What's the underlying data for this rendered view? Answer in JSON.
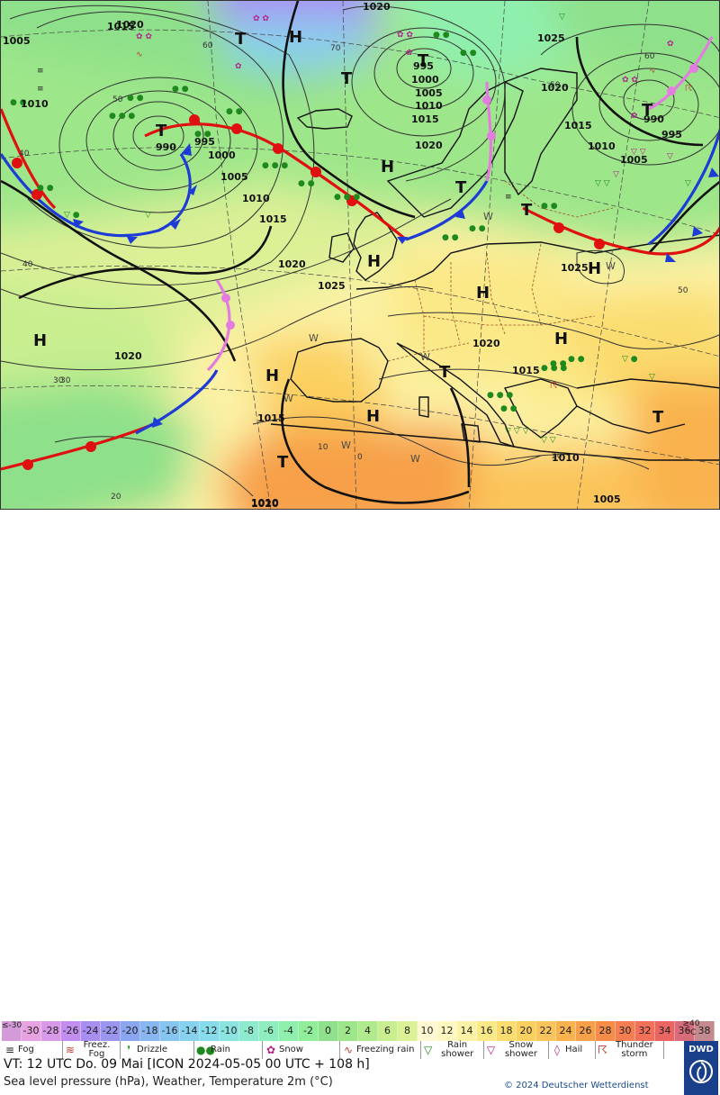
{
  "map": {
    "isobar_labels": [
      {
        "text": "1005"
      },
      {
        "text": "1015"
      },
      {
        "text": "1010"
      },
      {
        "text": "990"
      },
      {
        "text": "995"
      },
      {
        "text": "1000"
      },
      {
        "text": "1005"
      },
      {
        "text": "1010"
      },
      {
        "text": "1015"
      },
      {
        "text": "1020"
      },
      {
        "text": "1025"
      },
      {
        "text": "1020"
      },
      {
        "text": "1015"
      },
      {
        "text": "1020"
      },
      {
        "text": "995"
      },
      {
        "text": "1000"
      },
      {
        "text": "1005"
      },
      {
        "text": "1010"
      },
      {
        "text": "1015"
      },
      {
        "text": "1020"
      },
      {
        "text": "1025"
      },
      {
        "text": "1020"
      },
      {
        "text": "1015"
      },
      {
        "text": "1010"
      },
      {
        "text": "1005"
      },
      {
        "text": "990"
      },
      {
        "text": "995"
      },
      {
        "text": "1025"
      },
      {
        "text": "1020"
      },
      {
        "text": "1015"
      },
      {
        "text": "1010"
      },
      {
        "text": "1010"
      },
      {
        "text": "1005"
      },
      {
        "text": "1020"
      },
      {
        "text": "1020"
      }
    ],
    "pressure_centres": [
      {
        "text": "T"
      },
      {
        "text": "H"
      },
      {
        "text": "T"
      },
      {
        "text": "T"
      },
      {
        "text": "H"
      },
      {
        "text": "T"
      },
      {
        "text": "T"
      },
      {
        "text": "T"
      },
      {
        "text": "H"
      },
      {
        "text": "H"
      },
      {
        "text": "T"
      },
      {
        "text": "H"
      },
      {
        "text": "H"
      },
      {
        "text": "H"
      },
      {
        "text": "H"
      },
      {
        "text": "T"
      },
      {
        "text": "T"
      },
      {
        "text": "T"
      },
      {
        "text": "H"
      }
    ],
    "latlon_labels": [
      "60",
      "50",
      "70",
      "40",
      "40",
      "30",
      "30",
      "20",
      "10",
      "0",
      "20",
      "60",
      "50",
      "50"
    ],
    "weather_wind_marks": [
      "W",
      "W",
      "W",
      "W",
      "W",
      "W",
      "W"
    ]
  },
  "legend": {
    "temperature_scale": [
      {
        "label": "≤-30",
        "color": "#d59ad9"
      },
      {
        "label": "-30",
        "color": "#e7a2e0"
      },
      {
        "label": "-28",
        "color": "#d899e8"
      },
      {
        "label": "-26",
        "color": "#c28ff0"
      },
      {
        "label": "-24",
        "color": "#a98ef2"
      },
      {
        "label": "-22",
        "color": "#9a96ef"
      },
      {
        "label": "-20",
        "color": "#8aa6f0"
      },
      {
        "label": "-18",
        "color": "#88b6f0"
      },
      {
        "label": "-16",
        "color": "#86c5f0"
      },
      {
        "label": "-14",
        "color": "#86d2ee"
      },
      {
        "label": "-12",
        "color": "#86dcea"
      },
      {
        "label": "-10",
        "color": "#8ae4e0"
      },
      {
        "label": "-8",
        "color": "#8eeacf"
      },
      {
        "label": "-6",
        "color": "#8feec0"
      },
      {
        "label": "-4",
        "color": "#8ff0ae"
      },
      {
        "label": "-2",
        "color": "#90ee9a"
      },
      {
        "label": "0",
        "color": "#8ee08a"
      },
      {
        "label": "2",
        "color": "#9ee68a"
      },
      {
        "label": "4",
        "color": "#b0ea8c"
      },
      {
        "label": "6",
        "color": "#c8ee90"
      },
      {
        "label": "8",
        "color": "#dcf096"
      },
      {
        "label": "10",
        "color": "#fff8d2"
      },
      {
        "label": "12",
        "color": "#fff6c0"
      },
      {
        "label": "14",
        "color": "#fcf2a6"
      },
      {
        "label": "16",
        "color": "#fbe886"
      },
      {
        "label": "18",
        "color": "#fbdc6e"
      },
      {
        "label": "20",
        "color": "#fbd05e"
      },
      {
        "label": "22",
        "color": "#fbc45a"
      },
      {
        "label": "24",
        "color": "#f9b24e"
      },
      {
        "label": "26",
        "color": "#f7a04a"
      },
      {
        "label": "28",
        "color": "#f58c48"
      },
      {
        "label": "30",
        "color": "#f47e52"
      },
      {
        "label": "32",
        "color": "#f2705a"
      },
      {
        "label": "34",
        "color": "#ea6462"
      },
      {
        "label": "36",
        "color": "#d86c7a"
      },
      {
        "label": "38",
        "color": "#c58a90"
      }
    ],
    "scale_end": "≥40 °C",
    "weather_items": [
      {
        "label": "Fog",
        "icon": "fog-icon",
        "color": "#222222"
      },
      {
        "label": "Freez. Fog",
        "icon": "freezing-fog-icon",
        "color": "#c0392b"
      },
      {
        "label": "Drizzle",
        "icon": "drizzle-icon",
        "color": "#1e8a1e"
      },
      {
        "label": "Rain",
        "icon": "rain-icon",
        "color": "#1e8a1e"
      },
      {
        "label": "Snow",
        "icon": "snow-icon",
        "color": "#b0248a"
      },
      {
        "label": "Freezing rain",
        "icon": "freezing-rain-icon",
        "color": "#c0392b"
      },
      {
        "label": "Rain shower",
        "icon": "rain-shower-icon",
        "color": "#1e8a1e"
      },
      {
        "label": "Snow shower",
        "icon": "snow-shower-icon",
        "color": "#b0248a"
      },
      {
        "label": "Hail",
        "icon": "hail-icon",
        "color": "#b0248a"
      },
      {
        "label": "Thunder storm",
        "icon": "thunderstorm-icon",
        "color": "#c0392b"
      }
    ],
    "valid_time": "VT: 12 UTC Do.  09 Mai [ICON 2024-05-05  00 UTC + 108 h]",
    "subtitle": "Sea level pressure (hPa), Weather, Temperature 2m (°C)",
    "copyright": "© 2024 Deutscher Wetterdienst",
    "logo_text": "DWD"
  }
}
